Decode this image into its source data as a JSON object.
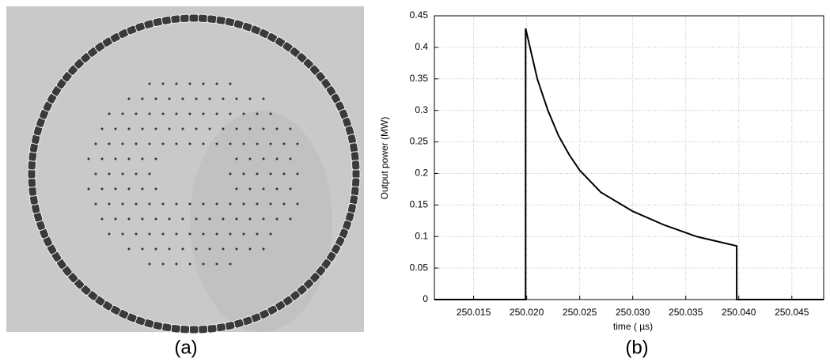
{
  "panels": [
    "(a)",
    "(b)"
  ],
  "chart_data": {
    "type": "line",
    "x_label": "time ( µs)",
    "y_label": "Output power (MW)",
    "xlim": [
      250.0113,
      250.048
    ],
    "ylim": [
      0,
      0.45
    ],
    "xticks": [
      250.015,
      {
        "value": 250.02,
        "label": "250.020"
      },
      250.025,
      {
        "value": 250.03,
        "label": "250.030"
      },
      250.035,
      {
        "value": 250.04,
        "label": "250.040"
      },
      250.045
    ],
    "yticks": [
      0,
      0.05,
      0.1,
      0.15,
      0.2,
      0.25,
      0.3,
      0.35,
      0.4,
      0.45
    ],
    "grid": true,
    "series": [
      {
        "color": "#000000",
        "x": [
          250.0113,
          250.0199,
          250.0199,
          250.021,
          250.022,
          250.023,
          250.024,
          250.025,
          250.027,
          250.03,
          250.033,
          250.036,
          250.0398,
          250.0398,
          250.048
        ],
        "values": [
          0,
          0,
          0.43,
          0.35,
          0.3,
          0.26,
          0.23,
          0.205,
          0.17,
          0.14,
          0.118,
          0.1,
          0.085,
          0,
          0
        ]
      }
    ]
  }
}
